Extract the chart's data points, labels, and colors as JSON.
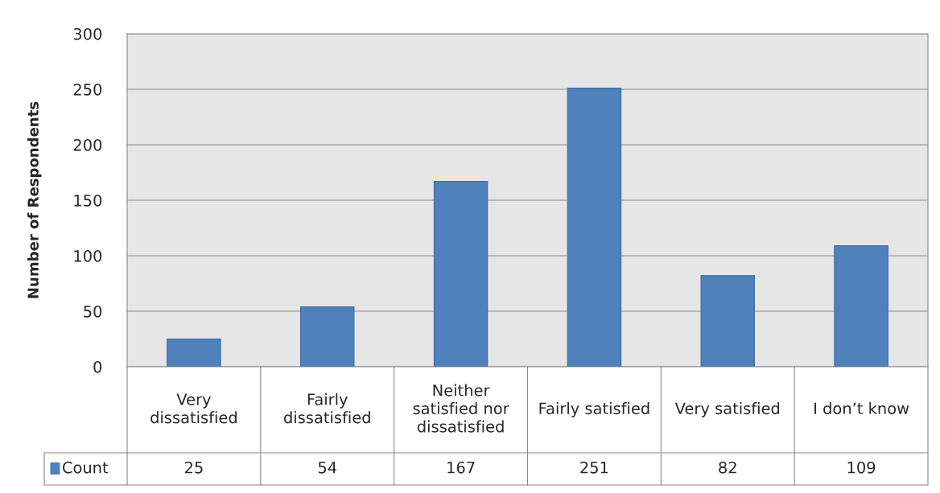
{
  "chart_data": {
    "type": "bar",
    "ylabel": "Number of Respondents",
    "categories": [
      "Very dissatisfied",
      "Fairly dissatisfied",
      "Neither satisfied nor dissatisfied",
      "Fairly satisfied",
      "Very satisfied",
      "I don’t know"
    ],
    "series": [
      {
        "name": "Count",
        "color": "#4f81bd",
        "values": [
          25,
          54,
          167,
          251,
          82,
          109
        ]
      }
    ],
    "ylim": [
      0,
      300
    ],
    "yticks": [
      0,
      50,
      100,
      150,
      200,
      250,
      300
    ],
    "grid": "y",
    "legend": "bottom",
    "data_labels": true
  }
}
